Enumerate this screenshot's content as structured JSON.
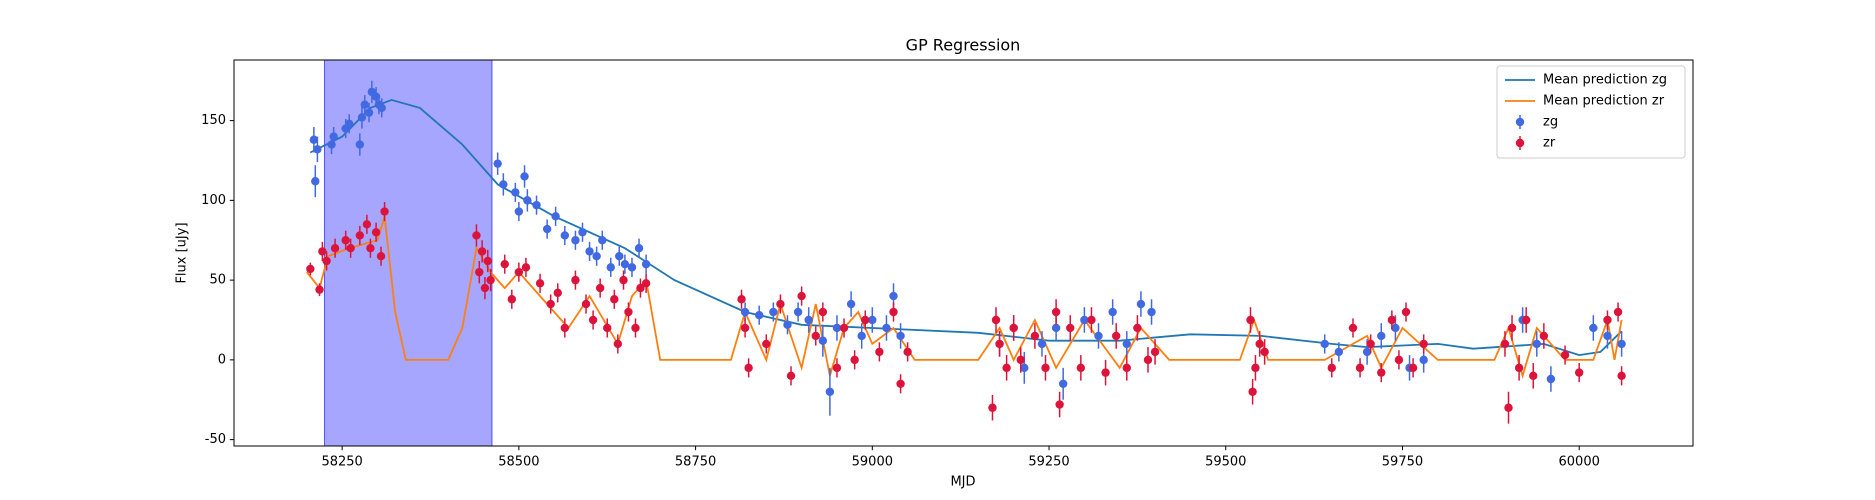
{
  "chart_data": {
    "type": "scatter",
    "title": "GP Regression",
    "xlabel": "MJD",
    "ylabel": "Flux [uJy]",
    "xlim": [
      58097,
      60161
    ],
    "ylim": [
      -54,
      188
    ],
    "xticks": [
      58250,
      58500,
      58750,
      59000,
      59250,
      59500,
      59750,
      60000
    ],
    "yticks": [
      -50,
      0,
      50,
      100,
      150
    ],
    "legend": "upper right",
    "span": {
      "x": [
        58225,
        58462
      ],
      "color": "#0000ff",
      "opacity": 0.35
    },
    "series": [
      {
        "name": "Mean prediction zg",
        "kind": "line",
        "color": "#1f77b4",
        "x": [
          58205,
          58250,
          58290,
          58320,
          58360,
          58420,
          58470,
          58550,
          58650,
          58720,
          58820,
          58900,
          59000,
          59150,
          59250,
          59350,
          59450,
          59550,
          59650,
          59700,
          59800,
          59850,
          59950,
          60000,
          60030,
          60060
        ],
        "values": [
          130,
          140,
          158,
          163,
          158,
          135,
          110,
          90,
          70,
          50,
          30,
          22,
          20,
          17,
          12,
          12,
          16,
          15,
          10,
          8,
          10,
          7,
          10,
          3,
          5,
          18
        ]
      },
      {
        "name": "Mean prediction zr",
        "kind": "line",
        "color": "#ff7f0e",
        "x": [
          58200,
          58218,
          58230,
          58260,
          58300,
          58310,
          58325,
          58340,
          58400,
          58420,
          58440,
          58460,
          58480,
          58500,
          58530,
          58570,
          58600,
          58640,
          58660,
          58680,
          58700,
          58800,
          58820,
          58850,
          58870,
          58900,
          58920,
          58940,
          58960,
          58980,
          59000,
          59030,
          59060,
          59150,
          59180,
          59200,
          59230,
          59260,
          59300,
          59350,
          59380,
          59420,
          59520,
          59540,
          59560,
          59640,
          59700,
          59720,
          59750,
          59800,
          59880,
          59900,
          59920,
          59940,
          59980,
          60020,
          60040,
          60050,
          60060
        ],
        "values": [
          55,
          45,
          65,
          70,
          75,
          90,
          30,
          0,
          0,
          20,
          70,
          55,
          45,
          55,
          40,
          20,
          40,
          10,
          40,
          50,
          0,
          0,
          30,
          0,
          35,
          -5,
          35,
          -10,
          20,
          30,
          10,
          20,
          0,
          0,
          20,
          0,
          25,
          -5,
          25,
          -5,
          20,
          0,
          0,
          25,
          0,
          0,
          15,
          -5,
          20,
          0,
          0,
          20,
          -10,
          20,
          0,
          0,
          25,
          0,
          25
        ]
      },
      {
        "name": "zg",
        "kind": "errorbar",
        "color": "#4169e1",
        "x": [
          58210,
          58212,
          58215,
          58235,
          58238,
          58255,
          58260,
          58275,
          58278,
          58282,
          58288,
          58292,
          58298,
          58302,
          58306,
          58470,
          58478,
          58495,
          58500,
          58508,
          58512,
          58525,
          58540,
          58552,
          58565,
          58580,
          58590,
          58600,
          58610,
          58618,
          58630,
          58642,
          58650,
          58660,
          58670,
          58680,
          58820,
          58840,
          58860,
          58880,
          58895,
          58910,
          58930,
          58940,
          58950,
          58970,
          58985,
          59000,
          59020,
          59030,
          59040,
          59180,
          59200,
          59215,
          59240,
          59260,
          59270,
          59300,
          59320,
          59340,
          59360,
          59380,
          59395,
          59640,
          59660,
          59700,
          59720,
          59740,
          59760,
          59780,
          59920,
          59940,
          59960,
          60020,
          60040,
          60060
        ],
        "values": [
          138,
          112,
          132,
          135,
          140,
          145,
          148,
          135,
          152,
          160,
          155,
          168,
          165,
          160,
          158,
          123,
          110,
          105,
          93,
          115,
          100,
          97,
          82,
          90,
          78,
          75,
          80,
          68,
          65,
          75,
          58,
          65,
          60,
          58,
          70,
          60,
          30,
          28,
          30,
          22,
          30,
          25,
          12,
          -20,
          20,
          35,
          15,
          25,
          20,
          40,
          15,
          10,
          20,
          -5,
          10,
          20,
          -15,
          25,
          15,
          30,
          10,
          35,
          30,
          10,
          5,
          5,
          15,
          20,
          -5,
          0,
          25,
          10,
          -12,
          20,
          15,
          10
        ],
        "errors": [
          8,
          10,
          8,
          6,
          6,
          6,
          6,
          7,
          7,
          6,
          6,
          7,
          6,
          6,
          6,
          7,
          7,
          6,
          6,
          7,
          7,
          6,
          6,
          6,
          6,
          6,
          6,
          6,
          6,
          6,
          6,
          6,
          6,
          6,
          6,
          6,
          6,
          6,
          6,
          6,
          6,
          8,
          10,
          15,
          8,
          8,
          8,
          8,
          8,
          8,
          8,
          8,
          8,
          10,
          8,
          8,
          10,
          8,
          8,
          8,
          8,
          8,
          8,
          6,
          6,
          8,
          8,
          8,
          8,
          8,
          8,
          8,
          8,
          8,
          8,
          8
        ]
      },
      {
        "name": "zr",
        "kind": "errorbar",
        "color": "#dc143c",
        "x": [
          58205,
          58218,
          58222,
          58228,
          58240,
          58255,
          58262,
          58275,
          58285,
          58290,
          58298,
          58305,
          58310,
          58440,
          58444,
          58448,
          58452,
          58456,
          58460,
          58480,
          58490,
          58500,
          58510,
          58530,
          58545,
          58555,
          58565,
          58580,
          58595,
          58605,
          58615,
          58625,
          58635,
          58640,
          58648,
          58655,
          58665,
          58672,
          58680,
          58815,
          58820,
          58825,
          58850,
          58870,
          58885,
          58900,
          58920,
          58930,
          58950,
          58960,
          58975,
          58990,
          59010,
          59030,
          59040,
          59050,
          59170,
          59175,
          59180,
          59190,
          59200,
          59210,
          59230,
          59245,
          59260,
          59265,
          59280,
          59295,
          59310,
          59330,
          59345,
          59360,
          59375,
          59390,
          59400,
          59535,
          59538,
          59542,
          59548,
          59555,
          59650,
          59680,
          59690,
          59705,
          59720,
          59735,
          59745,
          59755,
          59765,
          59780,
          59895,
          59900,
          59905,
          59915,
          59925,
          59935,
          59950,
          59980,
          60000,
          60040,
          60055,
          60060
        ],
        "values": [
          57,
          44,
          68,
          62,
          70,
          75,
          70,
          78,
          85,
          70,
          80,
          65,
          93,
          78,
          55,
          68,
          45,
          62,
          50,
          60,
          38,
          55,
          58,
          48,
          35,
          42,
          20,
          50,
          35,
          25,
          45,
          20,
          38,
          10,
          50,
          30,
          20,
          45,
          48,
          38,
          20,
          -5,
          10,
          35,
          -10,
          40,
          15,
          30,
          -5,
          20,
          0,
          25,
          5,
          30,
          -15,
          5,
          -30,
          25,
          10,
          -5,
          20,
          0,
          15,
          -5,
          30,
          -28,
          20,
          -5,
          25,
          -8,
          15,
          -5,
          20,
          0,
          5,
          25,
          -20,
          -5,
          10,
          5,
          -5,
          20,
          -5,
          10,
          -8,
          25,
          0,
          30,
          -5,
          10,
          10,
          -30,
          20,
          -5,
          25,
          -10,
          15,
          3,
          -8,
          25,
          30,
          -10
        ],
        "errors": [
          4,
          4,
          6,
          6,
          6,
          6,
          6,
          6,
          6,
          6,
          6,
          6,
          6,
          7,
          7,
          7,
          7,
          7,
          7,
          6,
          6,
          6,
          6,
          6,
          6,
          6,
          6,
          6,
          6,
          6,
          6,
          6,
          6,
          6,
          6,
          6,
          6,
          6,
          6,
          6,
          6,
          6,
          6,
          6,
          6,
          6,
          6,
          6,
          6,
          6,
          6,
          6,
          6,
          6,
          6,
          6,
          8,
          8,
          8,
          8,
          8,
          8,
          8,
          8,
          8,
          8,
          8,
          8,
          8,
          8,
          8,
          8,
          8,
          8,
          8,
          8,
          8,
          8,
          8,
          8,
          6,
          6,
          6,
          6,
          6,
          6,
          6,
          6,
          6,
          6,
          8,
          10,
          8,
          8,
          8,
          8,
          8,
          6,
          6,
          6,
          6,
          6
        ]
      }
    ]
  }
}
